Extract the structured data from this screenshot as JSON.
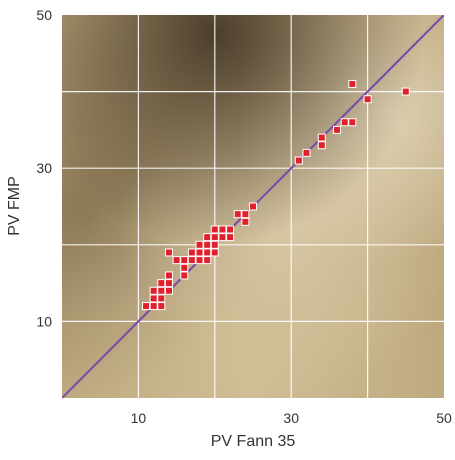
{
  "chart_data": {
    "type": "scatter",
    "title": "",
    "xlabel": "PV Fann 35",
    "ylabel": "PV FMP",
    "xlim": [
      0,
      50
    ],
    "ylim": [
      0,
      50
    ],
    "x_ticks": [
      10,
      30,
      50
    ],
    "y_ticks": [
      10,
      30,
      50
    ],
    "x_tick_labels": [
      "10",
      "30",
      "50"
    ],
    "y_tick_labels": [
      "10",
      "30",
      "50"
    ],
    "grid": true,
    "grid_step": 10,
    "background": "textured beige/brown photo",
    "reference_line": {
      "type": "y=x",
      "color": "#7b4fa6"
    },
    "marker_color": "#e0202a",
    "marker_edge": "#ffffff",
    "points": [
      {
        "x": 11,
        "y": 12
      },
      {
        "x": 12,
        "y": 12
      },
      {
        "x": 12,
        "y": 13
      },
      {
        "x": 12,
        "y": 14
      },
      {
        "x": 13,
        "y": 12
      },
      {
        "x": 13,
        "y": 13
      },
      {
        "x": 13,
        "y": 14
      },
      {
        "x": 13,
        "y": 15
      },
      {
        "x": 14,
        "y": 14
      },
      {
        "x": 14,
        "y": 15
      },
      {
        "x": 14,
        "y": 16
      },
      {
        "x": 14,
        "y": 19
      },
      {
        "x": 15,
        "y": 18
      },
      {
        "x": 16,
        "y": 16
      },
      {
        "x": 16,
        "y": 17
      },
      {
        "x": 16,
        "y": 18
      },
      {
        "x": 17,
        "y": 18
      },
      {
        "x": 17,
        "y": 19
      },
      {
        "x": 18,
        "y": 18
      },
      {
        "x": 18,
        "y": 19
      },
      {
        "x": 18,
        "y": 20
      },
      {
        "x": 19,
        "y": 18
      },
      {
        "x": 19,
        "y": 19
      },
      {
        "x": 19,
        "y": 20
      },
      {
        "x": 19,
        "y": 21
      },
      {
        "x": 20,
        "y": 19
      },
      {
        "x": 20,
        "y": 20
      },
      {
        "x": 20,
        "y": 21
      },
      {
        "x": 20,
        "y": 22
      },
      {
        "x": 21,
        "y": 21
      },
      {
        "x": 21,
        "y": 22
      },
      {
        "x": 22,
        "y": 21
      },
      {
        "x": 22,
        "y": 22
      },
      {
        "x": 23,
        "y": 24
      },
      {
        "x": 24,
        "y": 23
      },
      {
        "x": 24,
        "y": 24
      },
      {
        "x": 25,
        "y": 25
      },
      {
        "x": 31,
        "y": 31
      },
      {
        "x": 32,
        "y": 32
      },
      {
        "x": 34,
        "y": 33
      },
      {
        "x": 34,
        "y": 34
      },
      {
        "x": 36,
        "y": 35
      },
      {
        "x": 37,
        "y": 36
      },
      {
        "x": 38,
        "y": 36
      },
      {
        "x": 38,
        "y": 41
      },
      {
        "x": 40,
        "y": 39
      },
      {
        "x": 45,
        "y": 40
      }
    ]
  }
}
